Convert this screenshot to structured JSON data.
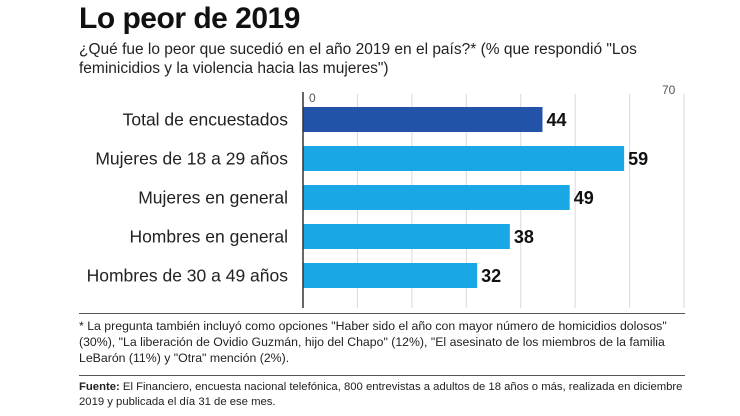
{
  "header": {
    "title": "Lo peor de 2019",
    "subtitle": "¿Qué fue lo peor que sucedió en el año 2019 en el país?* (% que respondió \"Los feminicidios y la violencia hacia las mujeres\")"
  },
  "chart_data": {
    "type": "bar",
    "orientation": "horizontal",
    "categories": [
      "Total de encuestados",
      "Mujeres de 18 a 29 años",
      "Mujeres en general",
      "Hombres en general",
      "Hombres de 30 a 49 años"
    ],
    "values": [
      44,
      59,
      49,
      38,
      32
    ],
    "value_labels": [
      "44",
      "59",
      "49",
      "38",
      "32"
    ],
    "xlim": [
      0,
      70
    ],
    "tick_labels": [
      "0",
      "70"
    ],
    "grid": true,
    "colors": {
      "highlight": "#2353a8",
      "bar": "#1aa7e6",
      "grid": "#d9d9d9",
      "axis": "#333333"
    },
    "highlight_index": 0
  },
  "footer": {
    "note": "* La pregunta también incluyó como opciones \"Haber sido el año con mayor número de homicidios dolosos\" (30%), \"La liberación de Ovidio Guzmán, hijo del Chapo\" (12%), \"El asesinato de los miembros de la familia LeBarón (11%) y \"Otra\" mención (2%).",
    "source_label": "Fuente:",
    "source_text": " El Financiero, encuesta nacional telefónica, 800 entrevistas a adultos de 18 años o más, realizada en diciembre 2019 y publicada el día 31 de ese mes."
  }
}
